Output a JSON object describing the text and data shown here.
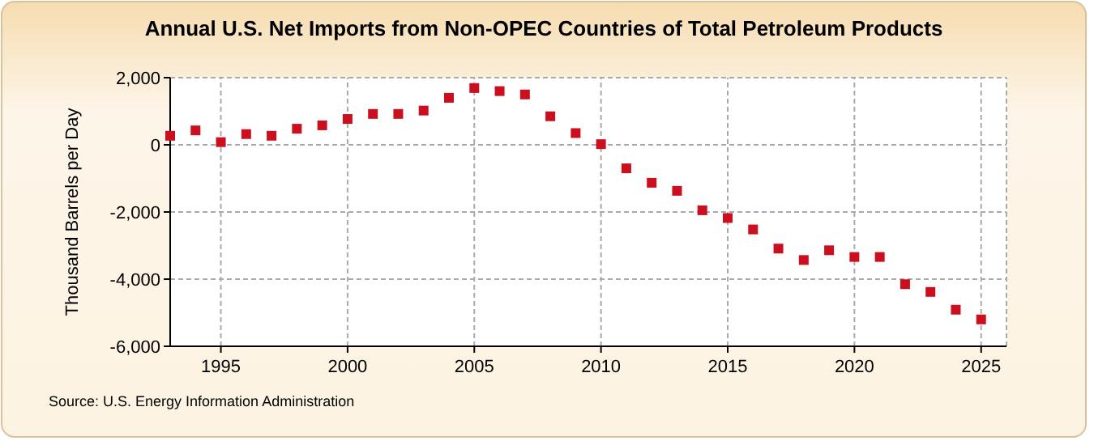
{
  "chart_data": {
    "type": "scatter",
    "title": "Annual U.S. Net Imports from Non-OPEC Countries of Total Petroleum Products",
    "ylabel": "Thousand Barrels per Day",
    "annotations": [
      "Source: U.S. Energy Information Administration"
    ],
    "x": [
      1993,
      1994,
      1995,
      1996,
      1997,
      1998,
      1999,
      2000,
      2001,
      2002,
      2003,
      2004,
      2005,
      2006,
      2007,
      2008,
      2009,
      2010,
      2011,
      2012,
      2013,
      2014,
      2015,
      2016,
      2017,
      2018,
      2019,
      2020,
      2021,
      2022,
      2023,
      2024,
      2025
    ],
    "series": [
      {
        "color": "#cc0f1e",
        "values": [
          270,
          430,
          80,
          320,
          270,
          480,
          580,
          770,
          920,
          920,
          1020,
          1400,
          1690,
          1600,
          1500,
          850,
          350,
          20,
          -700,
          -1130,
          -1370,
          -1950,
          -2180,
          -2520,
          -3090,
          -3430,
          -3140,
          -3340,
          -3340,
          -4150,
          -4380,
          -4910,
          -5200
        ]
      }
    ],
    "xlim": [
      1993,
      2026
    ],
    "xticks": [
      1995,
      2000,
      2005,
      2010,
      2015,
      2020,
      2025
    ],
    "ylim": [
      -6000,
      2000
    ],
    "yticks": [
      {
        "value": -6000,
        "label": "-6,000"
      },
      {
        "value": -4000,
        "label": "-4,000"
      },
      {
        "value": -2000,
        "label": "-2,000"
      },
      0,
      {
        "value": 2000,
        "label": "2,000"
      }
    ],
    "grid": true,
    "marker": "square"
  }
}
